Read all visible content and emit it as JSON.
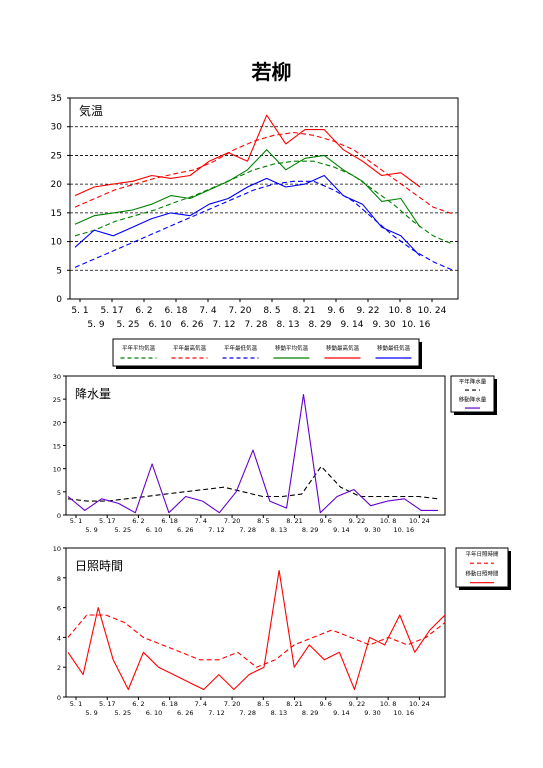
{
  "page_title": "若柳",
  "chart_data": [
    {
      "type": "line",
      "title": "気温",
      "ylim": [
        0,
        35
      ],
      "yticks": [
        0,
        5,
        10,
        15,
        20,
        25,
        30,
        35
      ],
      "grid": "dashed horizontal",
      "xticks_top": [
        "5. 1",
        "5. 17",
        "6. 2",
        "6. 18",
        "7. 4",
        "7. 20",
        "8. 5",
        "8. 21",
        "9. 6",
        "9. 22",
        "10. 8",
        "10. 24"
      ],
      "xticks_bottom": [
        "5. 9",
        "5. 25",
        "6. 10",
        "6. 26",
        "7. 12",
        "7. 28",
        "8. 13",
        "8. 29",
        "9. 14",
        "9. 30",
        "10. 16"
      ],
      "legend": [
        "平年平均気温",
        "平年最高気温",
        "平年最低気温",
        "移動平均気温",
        "移動最高気温",
        "移動最低気温"
      ],
      "legend_placement": "bottom",
      "x_first": "5.1",
      "x_last": "10.30",
      "obs_last": "10.14",
      "series": [
        {
          "name": "平年平均気温",
          "style": "dashed",
          "color": "#008000",
          "values": [
            11.0,
            12.0,
            13.5,
            14.5,
            15.5,
            16.8,
            18.0,
            19.5,
            21.0,
            22.5,
            23.5,
            24.0,
            24.0,
            23.0,
            21.5,
            19.0,
            16.5,
            13.5,
            11.0,
            9.5
          ]
        },
        {
          "name": "平年最高気温",
          "style": "dashed",
          "color": "#ff0000",
          "values": [
            16.0,
            17.5,
            19.0,
            20.0,
            21.0,
            21.8,
            22.5,
            24.0,
            26.0,
            27.5,
            28.5,
            29.0,
            28.5,
            27.5,
            26.0,
            23.5,
            21.0,
            18.5,
            16.0,
            14.8
          ]
        },
        {
          "name": "平年最低気温",
          "style": "dashed",
          "color": "#0000ff",
          "values": [
            5.5,
            7.0,
            8.5,
            10.0,
            11.5,
            13.0,
            14.5,
            16.0,
            17.5,
            19.0,
            20.0,
            20.5,
            20.5,
            19.0,
            17.0,
            14.0,
            11.0,
            8.5,
            6.5,
            5.0
          ]
        },
        {
          "name": "移動平均気温",
          "style": "solid",
          "color": "#008000",
          "values": [
            13.0,
            14.5,
            15.0,
            15.5,
            16.5,
            18.0,
            17.5,
            19.0,
            20.5,
            22.5,
            26.0,
            22.5,
            24.5,
            25.0,
            22.5,
            20.5,
            17.0,
            17.5,
            12.5
          ]
        },
        {
          "name": "移動最高気温",
          "style": "solid",
          "color": "#ff0000",
          "values": [
            18.0,
            19.5,
            20.0,
            20.5,
            21.5,
            21.0,
            21.5,
            24.0,
            25.5,
            24.0,
            32.0,
            27.0,
            29.5,
            29.5,
            26.0,
            24.0,
            21.5,
            22.0,
            19.5
          ]
        },
        {
          "name": "移動最低気温",
          "style": "solid",
          "color": "#0000ff",
          "values": [
            9.0,
            12.0,
            11.0,
            12.5,
            14.0,
            15.0,
            14.5,
            16.5,
            17.5,
            19.5,
            21.0,
            19.5,
            20.0,
            21.5,
            18.0,
            16.5,
            12.5,
            11.0,
            7.5
          ]
        }
      ]
    },
    {
      "type": "line",
      "title": "降水量",
      "ylim": [
        0,
        30
      ],
      "yticks": [
        0,
        5,
        10,
        15,
        20,
        25,
        30
      ],
      "xticks_top": [
        "5. 1",
        "5. 17",
        "6. 2",
        "6. 18",
        "7. 4",
        "7. 20",
        "8. 5",
        "8. 21",
        "9. 6",
        "9. 22",
        "10. 8",
        "10. 24"
      ],
      "xticks_bottom": [
        "5. 9",
        "5. 25",
        "6. 10",
        "6. 26",
        "7. 12",
        "7. 28",
        "8. 13",
        "8. 29",
        "9. 14",
        "9. 30",
        "10. 16"
      ],
      "legend": [
        "平年降水量",
        "移動降水量"
      ],
      "legend_placement": "right",
      "series": [
        {
          "name": "平年降水量",
          "style": "dashed",
          "color": "#000000",
          "values": [
            3.5,
            3.0,
            3.0,
            3.5,
            4.0,
            4.5,
            5.0,
            5.5,
            6.0,
            5.0,
            4.0,
            4.0,
            4.5,
            10.5,
            6.0,
            4.0,
            4.0,
            4.0,
            4.0,
            3.5
          ]
        },
        {
          "name": "移動降水量",
          "style": "solid",
          "color": "#6600cc",
          "values": [
            4.0,
            1.0,
            3.5,
            2.5,
            0.5,
            11.0,
            0.5,
            4.0,
            3.0,
            0.5,
            5.0,
            14.0,
            3.0,
            1.5,
            26.0,
            0.5,
            4.0,
            5.5,
            2.0,
            3.0,
            3.5,
            1.0,
            1.0
          ]
        }
      ]
    },
    {
      "type": "line",
      "title": "日照時間",
      "ylim": [
        0,
        10
      ],
      "yticks": [
        0,
        2,
        4,
        6,
        8,
        10
      ],
      "xticks_top": [
        "5. 1",
        "5. 17",
        "6. 2",
        "6. 18",
        "7. 4",
        "7. 20",
        "8. 5",
        "8. 21",
        "9. 6",
        "9. 22",
        "10. 8",
        "10. 24"
      ],
      "xticks_bottom": [
        "5. 9",
        "5. 25",
        "6. 10",
        "6. 26",
        "7. 12",
        "7. 28",
        "8. 13",
        "8. 29",
        "9. 14",
        "9. 30",
        "10. 16"
      ],
      "legend": [
        "平年日照時間",
        "移動日照時間"
      ],
      "legend_placement": "right",
      "series": [
        {
          "name": "平年日照時間",
          "style": "dashed",
          "color": "#ff0000",
          "values": [
            4.0,
            5.5,
            5.5,
            5.0,
            4.0,
            3.5,
            3.0,
            2.5,
            2.5,
            3.0,
            2.0,
            2.5,
            3.5,
            4.0,
            4.5,
            4.0,
            3.5,
            4.0,
            3.5,
            4.0,
            5.0
          ]
        },
        {
          "name": "移動日照時間",
          "style": "solid",
          "color": "#ff0000",
          "values": [
            3.0,
            1.5,
            6.0,
            2.5,
            0.5,
            3.0,
            2.0,
            1.5,
            1.0,
            0.5,
            1.5,
            0.5,
            1.5,
            2.0,
            8.5,
            2.0,
            3.5,
            2.5,
            3.0,
            0.5,
            4.0,
            3.5,
            5.5,
            3.0,
            4.5,
            5.5
          ]
        }
      ]
    }
  ]
}
